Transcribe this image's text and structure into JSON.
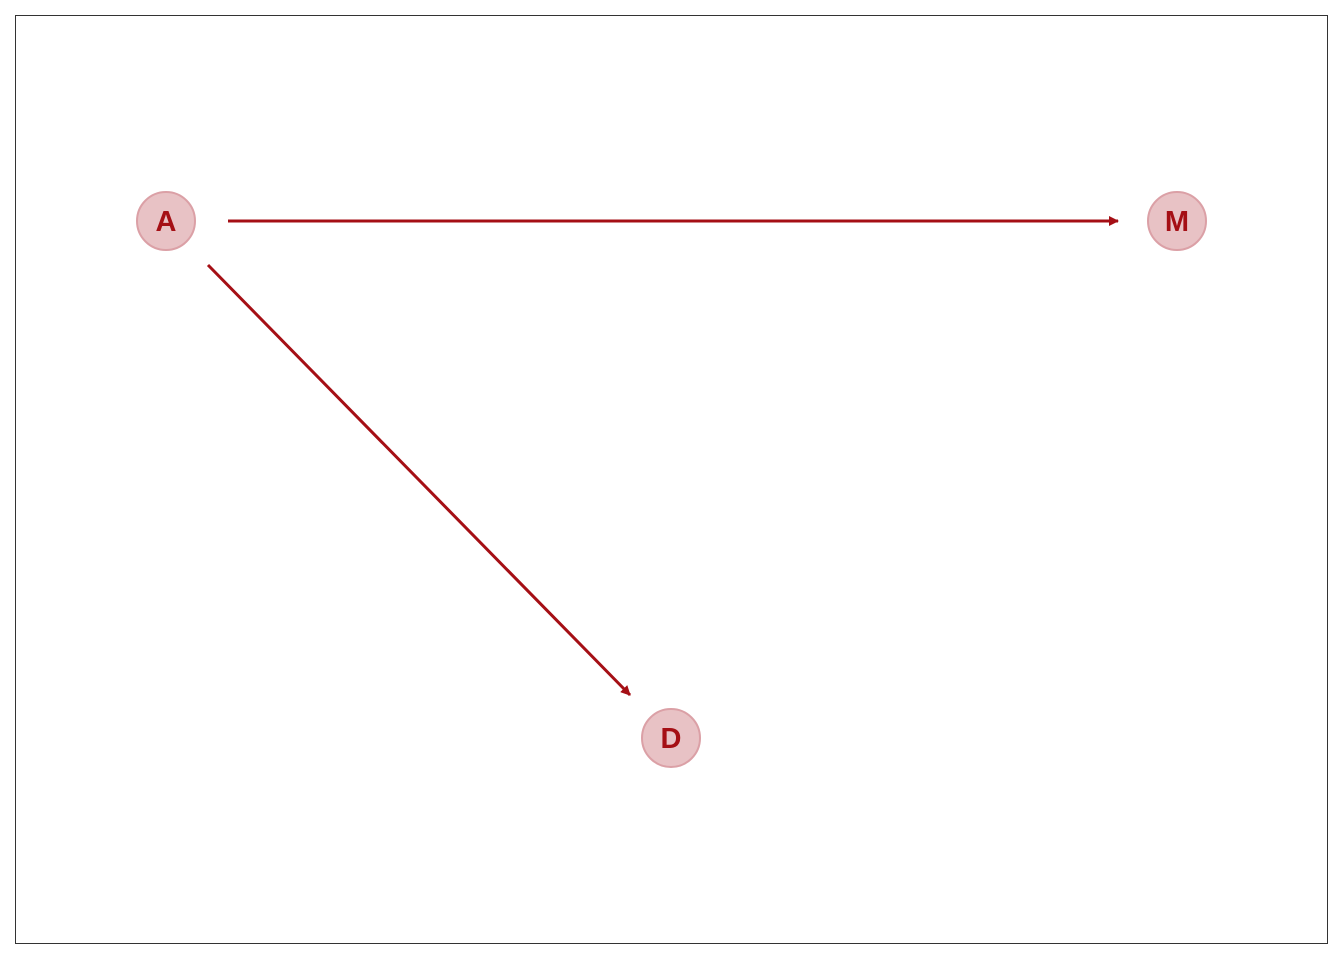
{
  "diagram": {
    "nodes": [
      {
        "id": "A",
        "label": "A"
      },
      {
        "id": "M",
        "label": "M"
      },
      {
        "id": "D",
        "label": "D"
      }
    ],
    "edges": [
      {
        "from": "A",
        "to": "M"
      },
      {
        "from": "A",
        "to": "D"
      }
    ],
    "colors": {
      "edge": "#a50f15",
      "node_fill": "#e8c2c5",
      "node_stroke": "#dba0a6",
      "label": "#a50f15",
      "frame": "#333333"
    }
  }
}
